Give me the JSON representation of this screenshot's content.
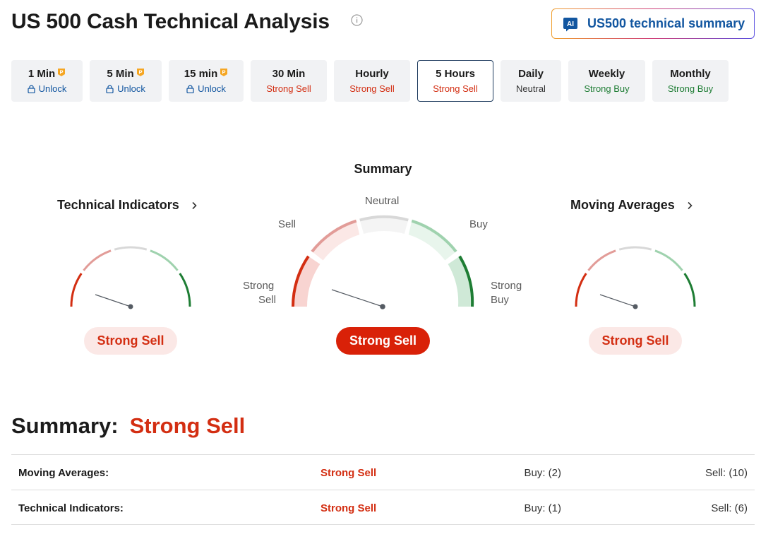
{
  "header": {
    "title": "US 500 Cash Technical Analysis",
    "ai_button": {
      "badge": "AI",
      "label": "US500 technical summary"
    }
  },
  "timeframes": [
    {
      "name": "1 Min",
      "value": "Unlock",
      "locked": true,
      "tone": "unlock"
    },
    {
      "name": "5 Min",
      "value": "Unlock",
      "locked": true,
      "tone": "unlock"
    },
    {
      "name": "15 min",
      "value": "Unlock",
      "locked": true,
      "tone": "unlock"
    },
    {
      "name": "30 Min",
      "value": "Strong Sell",
      "locked": false,
      "tone": "sell"
    },
    {
      "name": "Hourly",
      "value": "Strong Sell",
      "locked": false,
      "tone": "sell"
    },
    {
      "name": "5 Hours",
      "value": "Strong Sell",
      "locked": false,
      "tone": "sell",
      "active": true
    },
    {
      "name": "Daily",
      "value": "Neutral",
      "locked": false,
      "tone": "neutral"
    },
    {
      "name": "Weekly",
      "value": "Strong Buy",
      "locked": false,
      "tone": "buy"
    },
    {
      "name": "Monthly",
      "value": "Strong Buy",
      "locked": false,
      "tone": "buy"
    }
  ],
  "gauges": {
    "summary_heading": "Summary",
    "technical_indicators": {
      "title": "Technical Indicators",
      "result": "Strong Sell"
    },
    "summary": {
      "result": "Strong Sell",
      "labels": {
        "strong_sell_1": "Strong",
        "strong_sell_2": "Sell",
        "sell": "Sell",
        "neutral": "Neutral",
        "buy": "Buy",
        "strong_buy_1": "Strong",
        "strong_buy_2": "Buy"
      }
    },
    "moving_averages": {
      "title": "Moving Averages",
      "result": "Strong Sell"
    }
  },
  "summary": {
    "label": "Summary:",
    "value": "Strong Sell",
    "rows": [
      {
        "name": "Moving Averages:",
        "action": "Strong Sell",
        "buy": "Buy: (2)",
        "sell": "Sell: (10)"
      },
      {
        "name": "Technical Indicators:",
        "action": "Strong Sell",
        "buy": "Buy: (1)",
        "sell": "Sell: (6)"
      }
    ]
  },
  "colors": {
    "strong_sell": "#d32e12",
    "sell": "#e29c98",
    "neutral": "#d8d8d8",
    "buy": "#9fd2ae",
    "strong_buy": "#1e7d34",
    "link": "#1256a0"
  }
}
